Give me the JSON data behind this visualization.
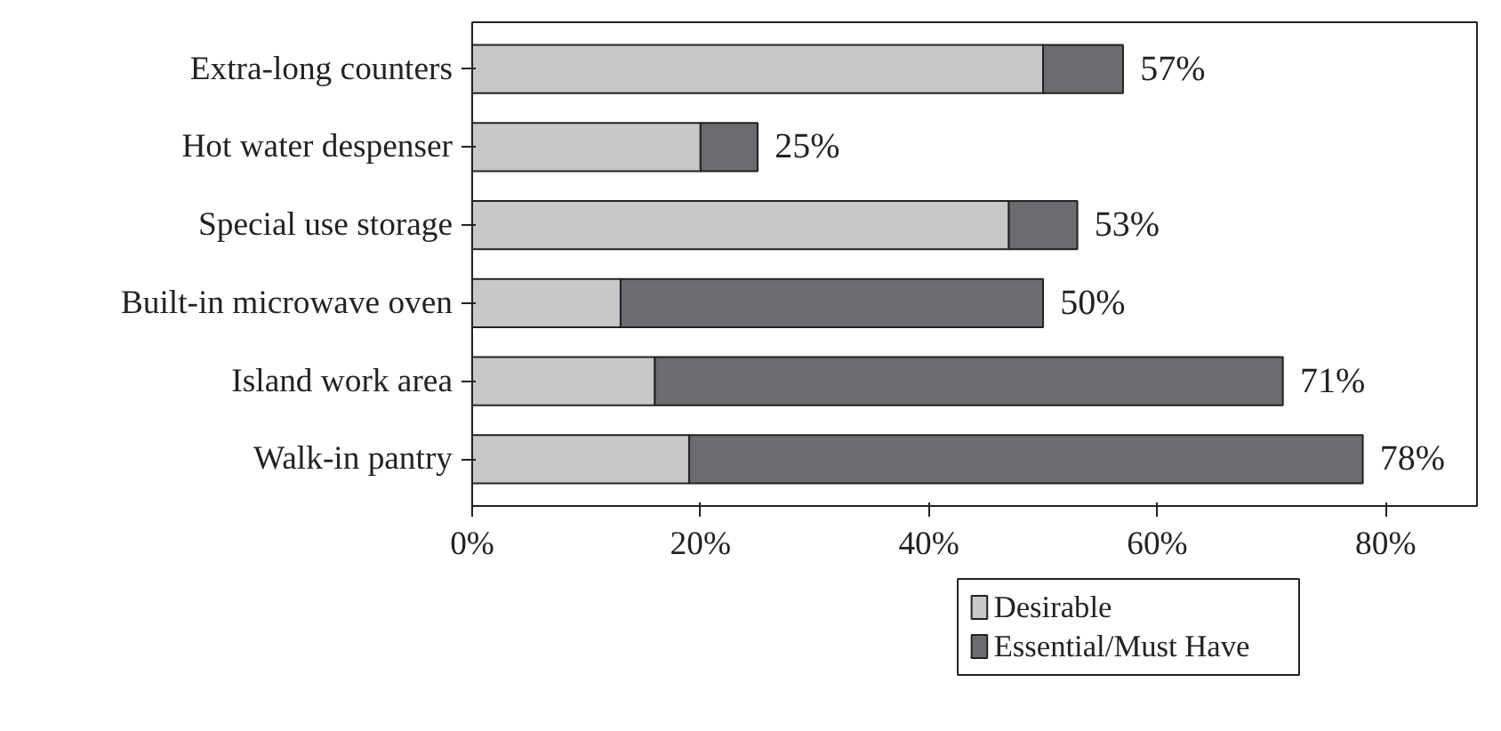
{
  "chart_data": {
    "type": "bar",
    "orientation": "horizontal",
    "stacked": true,
    "categories": [
      "Extra-long counters",
      "Hot water despenser",
      "Special use storage",
      "Built-in microwave oven",
      "Island work area",
      "Walk-in pantry"
    ],
    "series": [
      {
        "name": "Desirable",
        "color": "#c8c8ca",
        "values": [
          50,
          20,
          47,
          13,
          16,
          19
        ]
      },
      {
        "name": "Essential/Must Have",
        "color": "#6b6b70",
        "values": [
          7,
          5,
          6,
          37,
          55,
          59
        ]
      }
    ],
    "totals": [
      "57%",
      "25%",
      "53%",
      "50%",
      "71%",
      "78%"
    ],
    "xlim": [
      0,
      88
    ],
    "xticks": [
      {
        "value": 0,
        "label": "0%"
      },
      {
        "value": 20,
        "label": "20%"
      },
      {
        "value": 40,
        "label": "40%"
      },
      {
        "value": 60,
        "label": "60%"
      },
      {
        "value": 80,
        "label": "80%"
      }
    ],
    "grid": false,
    "legend": "bottom"
  }
}
